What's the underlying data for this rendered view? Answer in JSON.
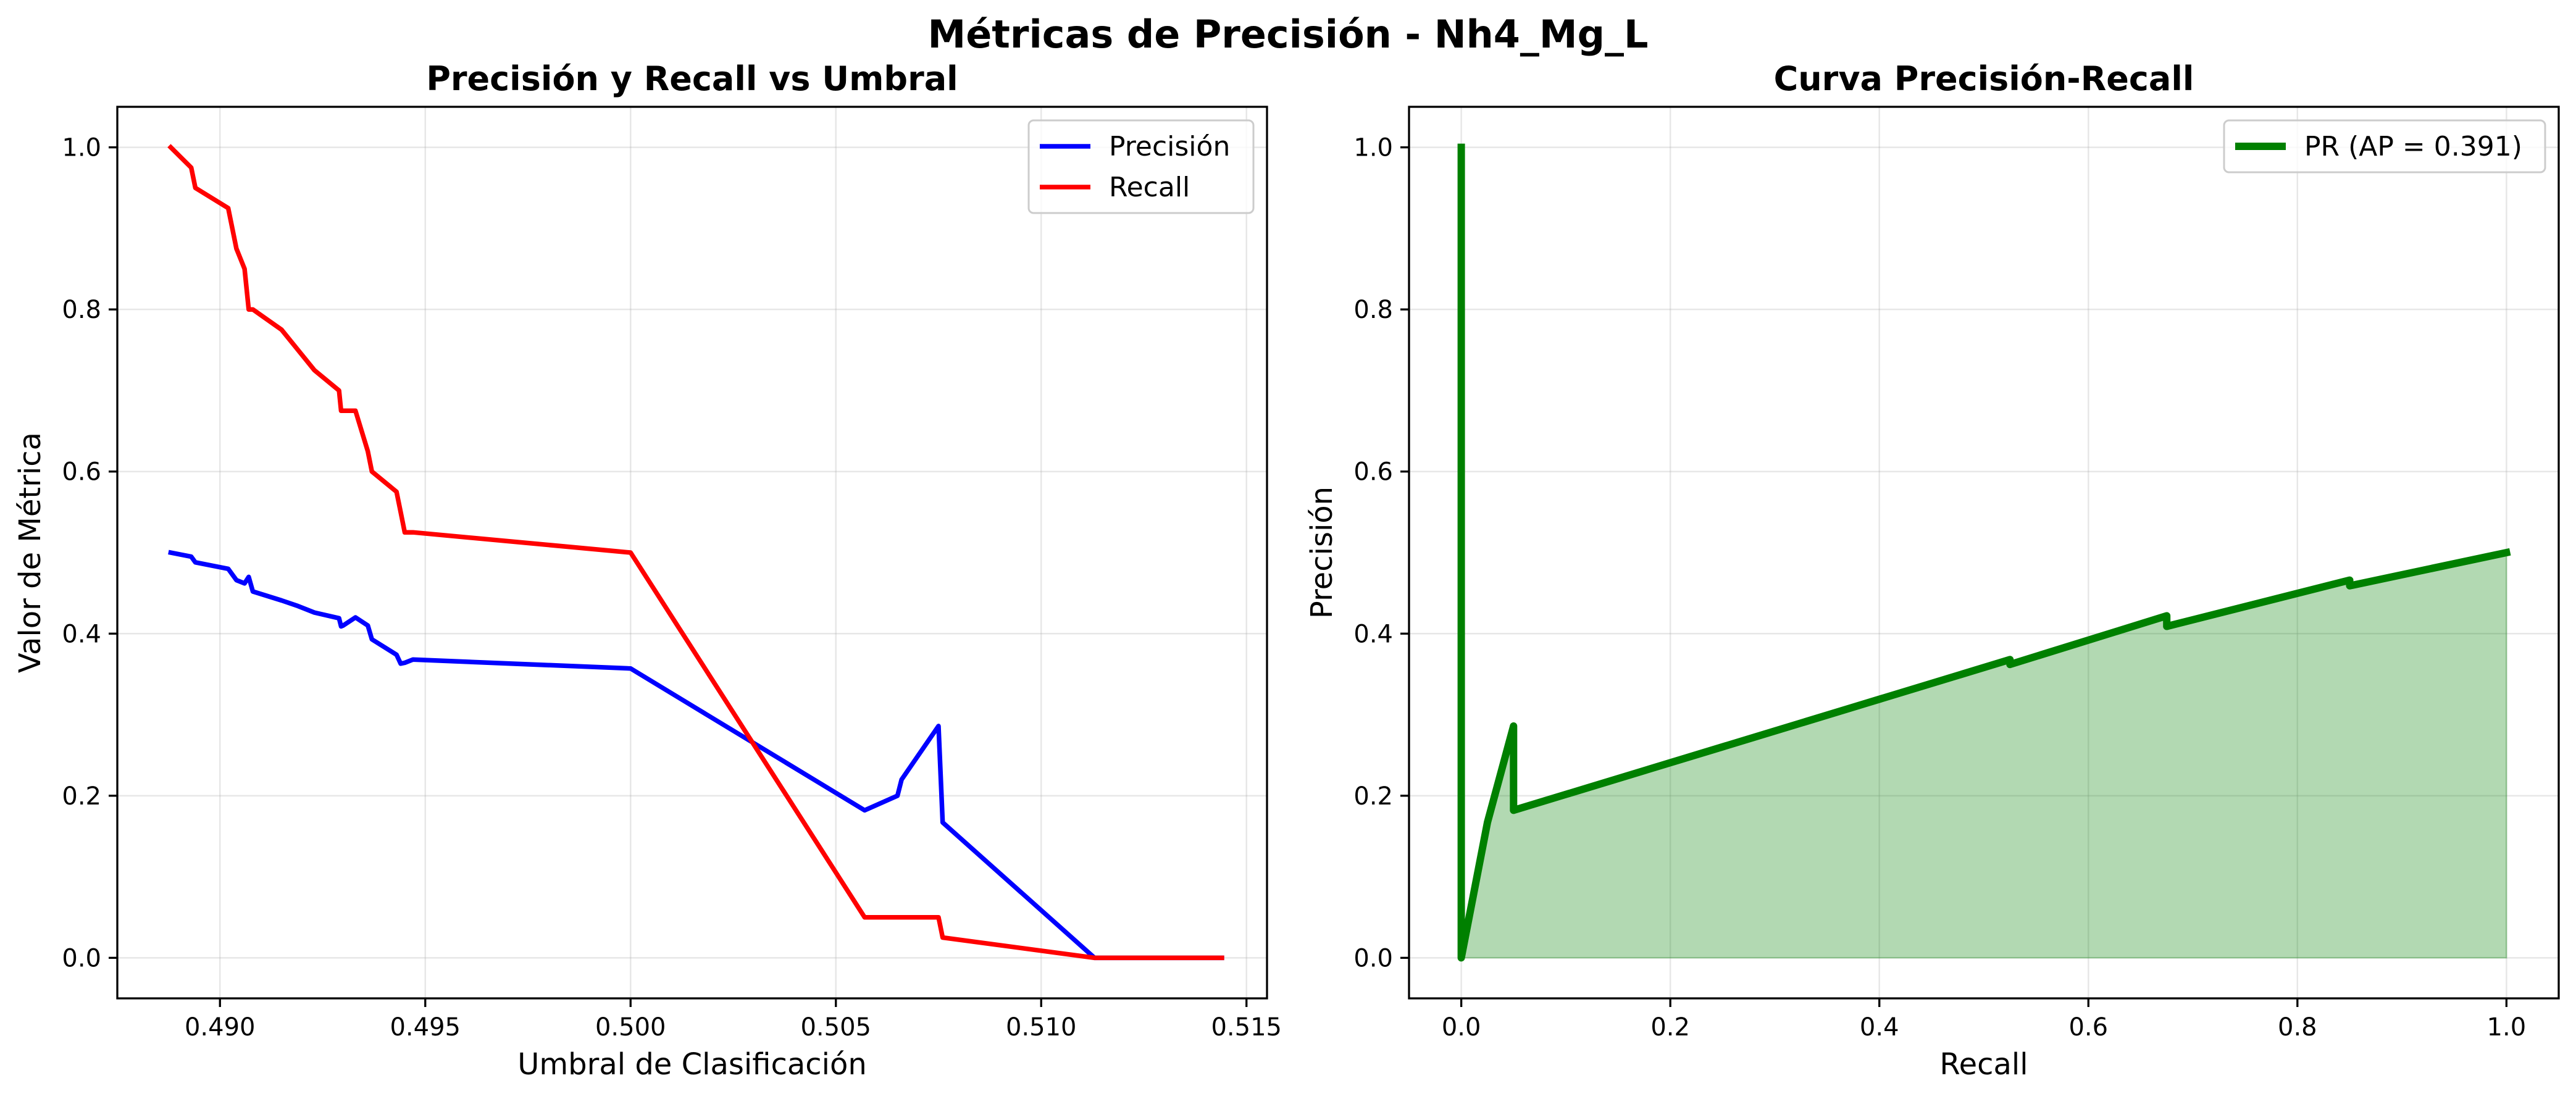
{
  "suptitle": "Métricas de Precisión - Nh4_Mg_L",
  "chart_data": [
    {
      "type": "line",
      "title": "Precisión y Recall vs Umbral",
      "xlabel": "Umbral de Clasificación",
      "ylabel": "Valor de Métrica",
      "xlim": [
        0.4875,
        0.5155
      ],
      "ylim": [
        -0.05,
        1.05
      ],
      "xticks": [
        0.49,
        0.495,
        0.5,
        0.505,
        0.51,
        0.515
      ],
      "xtick_labels": [
        "0.490",
        "0.495",
        "0.500",
        "0.505",
        "0.510",
        "0.515"
      ],
      "yticks": [
        0.0,
        0.2,
        0.4,
        0.6,
        0.8,
        1.0
      ],
      "ytick_labels": [
        "0.0",
        "0.2",
        "0.4",
        "0.6",
        "0.8",
        "1.0"
      ],
      "grid": true,
      "legend_position": "upper right",
      "series": [
        {
          "name": "Precisión",
          "color": "#0000ff",
          "x": [
            0.4888,
            0.4893,
            0.4894,
            0.4902,
            0.4904,
            0.4906,
            0.4907,
            0.4908,
            0.4915,
            0.4919,
            0.4923,
            0.4929,
            0.49295,
            0.493,
            0.4933,
            0.4936,
            0.4937,
            0.4943,
            0.4944,
            0.4945,
            0.4947,
            0.5,
            0.5057,
            0.5065,
            0.5066,
            0.5075,
            0.5076,
            0.5113,
            0.5144
          ],
          "y": [
            0.5,
            0.495,
            0.488,
            0.48,
            0.466,
            0.462,
            0.47,
            0.452,
            0.441,
            0.434,
            0.426,
            0.419,
            0.409,
            0.41,
            0.42,
            0.41,
            0.393,
            0.374,
            0.363,
            0.364,
            0.368,
            0.357,
            0.182,
            0.2,
            0.22,
            0.286,
            0.167,
            0.0,
            0.0
          ]
        },
        {
          "name": "Recall",
          "color": "#ff0000",
          "x": [
            0.4888,
            0.4893,
            0.4894,
            0.4902,
            0.4904,
            0.4906,
            0.4907,
            0.4908,
            0.4915,
            0.4919,
            0.4923,
            0.4929,
            0.49295,
            0.493,
            0.4933,
            0.4936,
            0.4937,
            0.4943,
            0.4944,
            0.4945,
            0.4947,
            0.5,
            0.5057,
            0.5065,
            0.5066,
            0.5075,
            0.5076,
            0.5113,
            0.5144
          ],
          "y": [
            1.0,
            0.975,
            0.95,
            0.925,
            0.875,
            0.85,
            0.8,
            0.8,
            0.775,
            0.75,
            0.725,
            0.7,
            0.675,
            0.675,
            0.675,
            0.625,
            0.6,
            0.575,
            0.55,
            0.525,
            0.525,
            0.5,
            0.05,
            0.05,
            0.05,
            0.05,
            0.025,
            0.0,
            0.0
          ]
        }
      ]
    },
    {
      "type": "area",
      "title": "Curva Precisión-Recall",
      "xlabel": "Recall",
      "ylabel": "Precisión",
      "xlim": [
        -0.05,
        1.05
      ],
      "ylim": [
        -0.05,
        1.05
      ],
      "xticks": [
        0.0,
        0.2,
        0.4,
        0.6,
        0.8,
        1.0
      ],
      "xtick_labels": [
        "0.0",
        "0.2",
        "0.4",
        "0.6",
        "0.8",
        "1.0"
      ],
      "yticks": [
        0.0,
        0.2,
        0.4,
        0.6,
        0.8,
        1.0
      ],
      "ytick_labels": [
        "0.0",
        "0.2",
        "0.4",
        "0.6",
        "0.8",
        "1.0"
      ],
      "grid": true,
      "legend_position": "upper right",
      "series": [
        {
          "name": "PR (AP = 0.391)",
          "color": "#008000",
          "fill_color": "#008000",
          "fill_opacity": 0.3,
          "x": [
            0.0,
            0.0,
            0.025,
            0.05,
            0.05,
            0.525,
            0.525,
            0.675,
            0.675,
            0.85,
            0.85,
            1.0
          ],
          "y": [
            1.0,
            0.0,
            0.167,
            0.286,
            0.182,
            0.368,
            0.362,
            0.422,
            0.409,
            0.466,
            0.459,
            0.5
          ]
        }
      ]
    }
  ]
}
